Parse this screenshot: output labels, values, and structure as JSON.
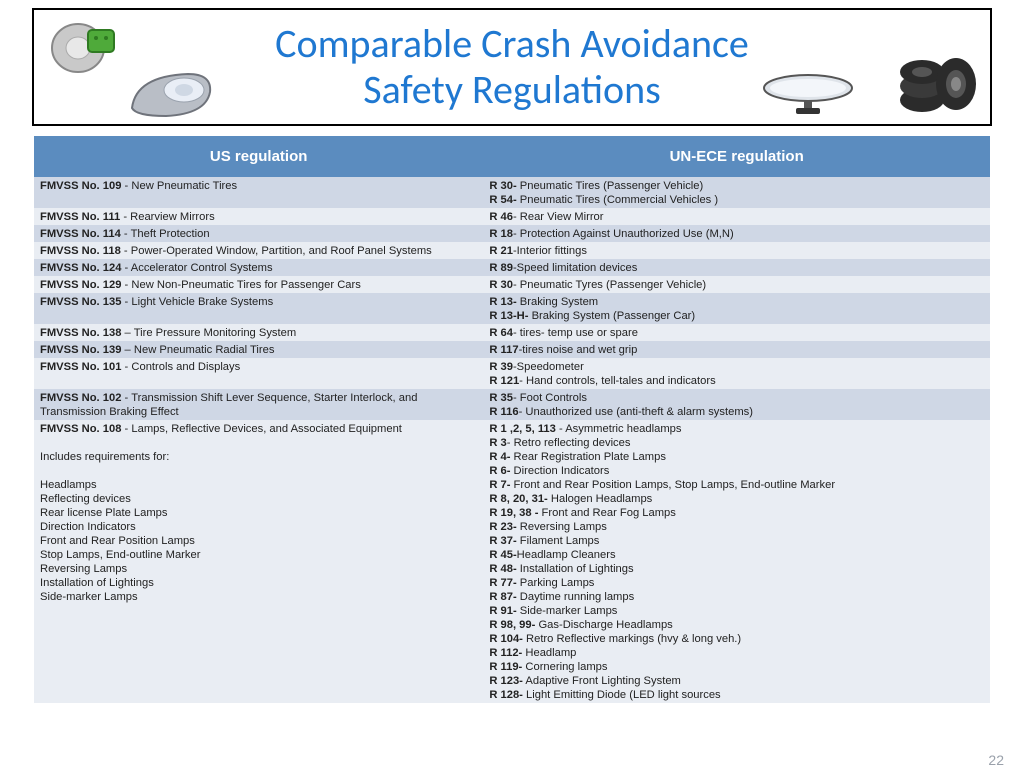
{
  "title_line1": "Comparable Crash Avoidance",
  "title_line2": "Safety Regulations",
  "header_us": "US regulation",
  "header_un": "UN-ECE regulation",
  "page_number": "22",
  "colors": {
    "title": "#1f78d1",
    "header_bg": "#5b8cbf",
    "row_alt": "#cfd7e5",
    "row_light": "#e9edf3"
  },
  "rows": [
    {
      "shade": "alt",
      "us_code": "FMVSS No. 109",
      "us_text": " - New Pneumatic Tires",
      "un": "<b>R 30-</b> Pneumatic Tires (Passenger Vehicle)\n<b>R 54-</b> Pneumatic Tires (Commercial Vehicles )"
    },
    {
      "shade": "light",
      "us_code": "FMVSS No. 111",
      "us_text": " - Rearview Mirrors",
      "un": "<b>R 46</b>- Rear View Mirror"
    },
    {
      "shade": "alt",
      "us_code": "FMVSS No. 114",
      "us_text": " - Theft Protection",
      "un": "<b>R 18</b>- Protection Against Unauthorized Use (M,N)"
    },
    {
      "shade": "light",
      "us_code": "FMVSS No. 118",
      "us_text": " - Power-Operated Window, Partition, and Roof Panel Systems",
      "un": "<b>R 21</b>-Interior fittings"
    },
    {
      "shade": "alt",
      "us_code": "FMVSS No. 124",
      "us_text": " - Accelerator Control Systems",
      "un": "<b>R 89</b>-Speed limitation devices"
    },
    {
      "shade": "light",
      "us_code": "FMVSS No. 129",
      "us_text": " - New Non-Pneumatic Tires for Passenger Cars",
      "un": "<b>R 30</b>- Pneumatic Tyres (Passenger Vehicle)"
    },
    {
      "shade": "alt",
      "us_code": "FMVSS No. 135",
      "us_text": " - Light Vehicle Brake Systems",
      "un": "<b>R 13-</b> Braking System\n<b>R 13-H-</b> Braking System (Passenger Car)"
    },
    {
      "shade": "light",
      "us_code": "FMVSS No. 138",
      "us_text": " – Tire Pressure Monitoring System",
      "un": "<b>R 64</b>- tires- temp use or spare\n "
    },
    {
      "shade": "alt",
      "us_code": "FMVSS No. 139",
      "us_text": " – New Pneumatic Radial Tires",
      "un": "<b>R 117</b>-tires noise and wet grip\n "
    },
    {
      "shade": "light",
      "us_code": "FMVSS No. 101",
      "us_text": " - Controls and Displays",
      "un": "<b>R 39</b>-Speedometer\n<b>R 121</b>- Hand controls, tell-tales and indicators"
    },
    {
      "shade": "alt",
      "us_code": "FMVSS No. 102",
      "us_text": " - Transmission Shift Lever Sequence, Starter Interlock, and Transmission Braking Effect",
      "un": "<b>R 35</b>- Foot Controls\n<b>R 116</b>- Unauthorized use (anti-theft & alarm systems)"
    },
    {
      "shade": "light",
      "us_code": "FMVSS No. 108",
      "us_text": " - Lamps, Reflective Devices, and Associated Equipment\n\nIncludes requirements for:\n\nHeadlamps\nReflecting devices\nRear license Plate Lamps\nDirection Indicators\nFront and Rear Position Lamps\nStop Lamps, End-outline Marker\nReversing Lamps\nInstallation of Lightings\nSide-marker Lamps",
      "un": "<b>R 1 ,2, 5, 113</b> - Asymmetric headlamps\n<b>R 3</b>- Retro reflecting devices\n<b>R 4-</b> Rear Registration Plate Lamps\n<b>R 6-</b> Direction Indicators\n<b>R 7-</b> Front and Rear Position Lamps, Stop Lamps, End-outline Marker\n<b>R 8, 20, 31-</b> Halogen Headlamps\n<b>R 19, 38 -</b> Front  and Rear Fog Lamps\n<b>R 23-</b> Reversing Lamps\n<b>R 37-</b> Filament Lamps\n<b>R 45-</b>Headlamp Cleaners\n<b>R 48-</b> Installation of Lightings\n<b>R 77-</b> Parking Lamps\n<b>R 87-</b> Daytime  running  lamps\n<b>R 91-</b> Side-marker Lamps\n<b>R 98, 99-</b> Gas-Discharge Headlamps\n<b>R 104-</b> Retro Reflective markings (hvy & long veh.)\n<b>R 112-</b> Headlamp\n<b>R 119-</b> Cornering lamps\n<b>R 123-</b> Adaptive Front Lighting System\n<b>R 128-</b> Light Emitting Diode (LED light sources"
    }
  ]
}
